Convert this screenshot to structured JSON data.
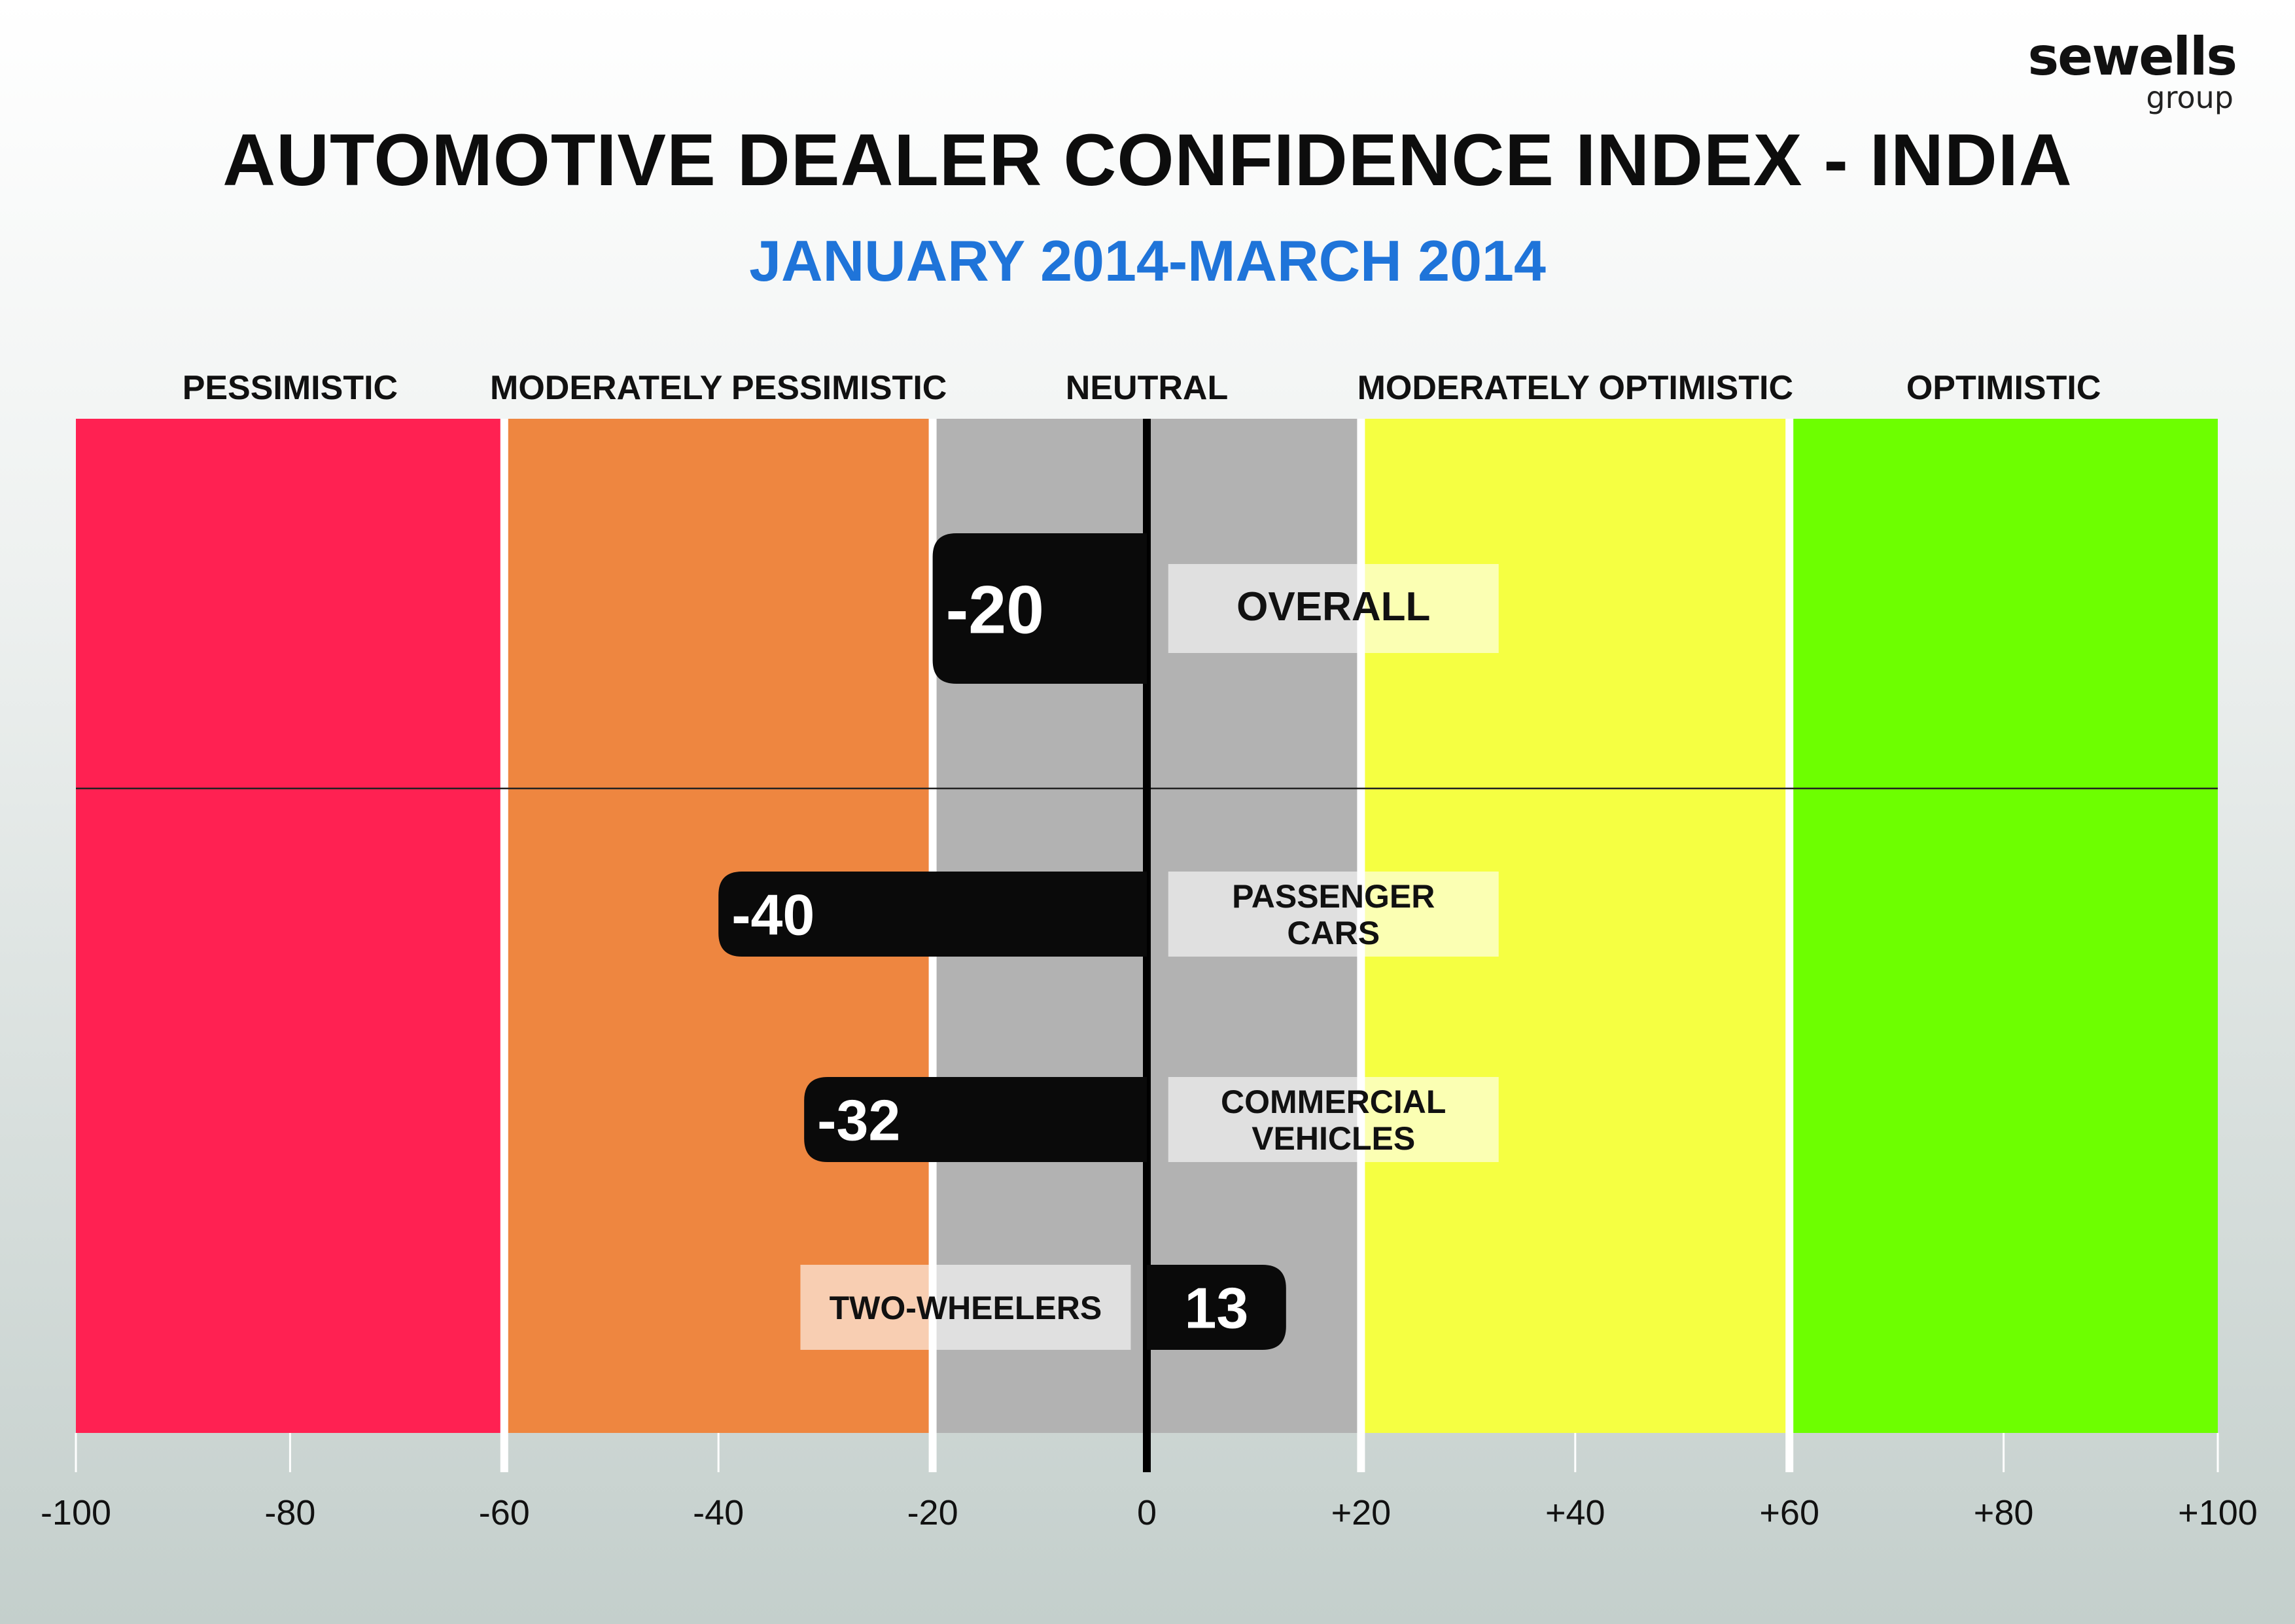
{
  "brand": {
    "name": "sewells",
    "sub": "group"
  },
  "title": "AUTOMOTIVE DEALER CONFIDENCE INDEX - INDIA",
  "subtitle": "JANUARY 2014-MARCH 2014",
  "chart_data": {
    "type": "bar",
    "orientation": "horizontal",
    "xlim": [
      -100,
      100
    ],
    "ticks": [
      -100,
      -80,
      -60,
      -40,
      -20,
      0,
      20,
      40,
      60,
      80,
      100
    ],
    "tick_labels": [
      "-100",
      "-80",
      "-60",
      "-40",
      "-20",
      "0",
      "+20",
      "+40",
      "+60",
      "+80",
      "+100"
    ],
    "zones": [
      {
        "label": "PESSIMISTIC",
        "from": -100,
        "to": -60,
        "color": "#ff2152"
      },
      {
        "label": "MODERATELY PESSIMISTIC",
        "from": -60,
        "to": -20,
        "color": "#ee8640"
      },
      {
        "label": "NEUTRAL",
        "from": -20,
        "to": 20,
        "color": "#b2b2b2"
      },
      {
        "label": "MODERATELY OPTIMISTIC",
        "from": 20,
        "to": 60,
        "color": "#f5ff42"
      },
      {
        "label": "OPTIMISTIC",
        "from": 60,
        "to": 100,
        "color": "#6dff00"
      }
    ],
    "bars": [
      {
        "category": [
          "OVERALL"
        ],
        "value": -20,
        "value_label": "-20"
      },
      {
        "category": [
          "PASSENGER",
          "CARS"
        ],
        "value": -40,
        "value_label": "-40"
      },
      {
        "category": [
          "COMMERCIAL",
          "VEHICLES"
        ],
        "value": -32,
        "value_label": "-32"
      },
      {
        "category": [
          "TWO-WHEELERS"
        ],
        "value": 13,
        "value_label": "13"
      }
    ]
  }
}
